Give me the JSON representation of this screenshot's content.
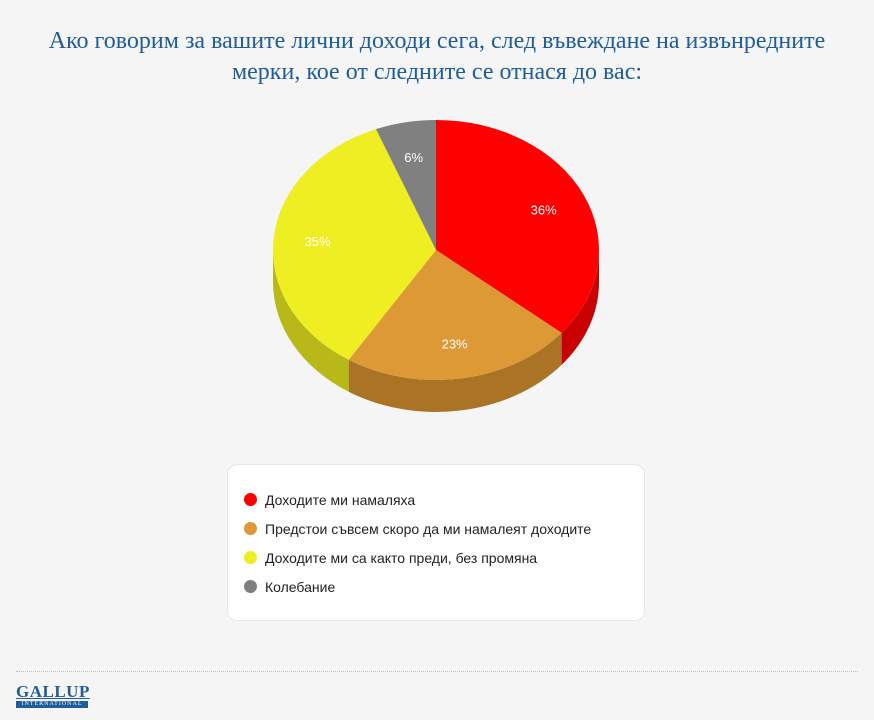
{
  "chart_data": {
    "type": "pie",
    "title_lines": [
      "Ако говорим за вашите лични доходи сега, след въвеждане на извънредните",
      "мерки, кое от следните се отнася до вас:"
    ],
    "slices": [
      {
        "name": "Доходите ми намаляха",
        "value": 36,
        "label": "36%",
        "color": "#ff0000",
        "side_color": "#c80000"
      },
      {
        "name": "Предстои съвсем скоро да ми намалеят доходите",
        "value": 23,
        "label": "23%",
        "color": "#dd9935",
        "side_color": "#aa7326"
      },
      {
        "name": "Доходите ми са както преди, без промяна",
        "value": 35,
        "label": "35%",
        "color": "#eeee22",
        "side_color": "#b8b818"
      },
      {
        "name": "Колебание",
        "value": 6,
        "label": "6%",
        "color": "#808080",
        "side_color": "#5e5e5e"
      }
    ],
    "legend_position": "bottom"
  },
  "footer": {
    "logo_main": "GALLUP",
    "logo_sub": "INTERNATIONAL"
  }
}
